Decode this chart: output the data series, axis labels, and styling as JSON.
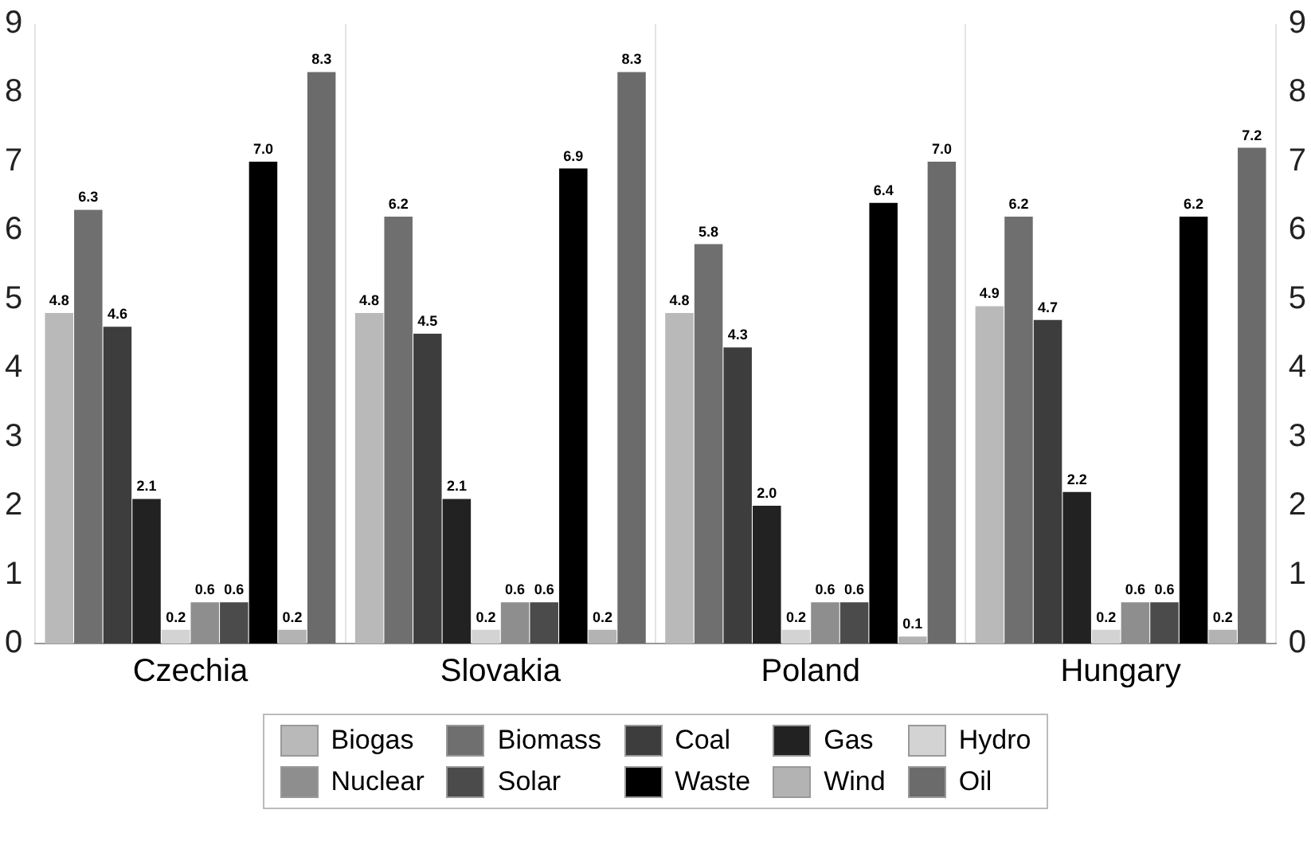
{
  "chart_data": {
    "type": "bar",
    "categories": [
      "Czechia",
      "Slovakia",
      "Poland",
      "Hungary"
    ],
    "series": [
      {
        "name": "Biogas",
        "color": "#b9b9b9",
        "values": [
          4.8,
          4.8,
          4.8,
          4.9
        ],
        "value_labels": [
          "4.8",
          "4.8",
          "4.8",
          "4.9"
        ]
      },
      {
        "name": "Biomass",
        "color": "#6f6f6f",
        "values": [
          6.3,
          6.2,
          5.8,
          6.2
        ],
        "value_labels": [
          "6.3",
          "6.2",
          "5.8",
          "6.2"
        ]
      },
      {
        "name": "Coal",
        "color": "#3d3d3d",
        "values": [
          4.6,
          4.5,
          4.3,
          4.7
        ],
        "value_labels": [
          "4.6",
          "4.5",
          "4.3",
          "4.7"
        ]
      },
      {
        "name": "Gas",
        "color": "#222222",
        "values": [
          2.1,
          2.1,
          2.0,
          2.2
        ],
        "value_labels": [
          "2.1",
          "2.1",
          "2.0",
          "2.2"
        ]
      },
      {
        "name": "Hydro",
        "color": "#d3d3d3",
        "values": [
          0.2,
          0.2,
          0.2,
          0.2
        ],
        "value_labels": [
          "0.2",
          "0.2",
          "0.2",
          "0.2"
        ]
      },
      {
        "name": "Nuclear",
        "color": "#8e8e8e",
        "values": [
          0.6,
          0.6,
          0.6,
          0.6
        ],
        "value_labels": [
          "0.6",
          "0.6",
          "0.6",
          "0.6"
        ]
      },
      {
        "name": "Solar",
        "color": "#4b4b4b",
        "values": [
          0.6,
          0.6,
          0.6,
          0.6
        ],
        "value_labels": [
          "0.6",
          "0.6",
          "0.6",
          "0.6"
        ]
      },
      {
        "name": "Waste",
        "color": "#000000",
        "values": [
          7.0,
          6.9,
          6.4,
          6.2
        ],
        "value_labels": [
          "7.0",
          "6.9",
          "6.4",
          "6.2"
        ]
      },
      {
        "name": "Wind",
        "color": "#b3b3b3",
        "values": [
          0.2,
          0.2,
          0.1,
          0.2
        ],
        "value_labels": [
          "0.2",
          "0.2",
          "0.1",
          "0.2"
        ]
      },
      {
        "name": "Oil",
        "color": "#6b6b6b",
        "values": [
          8.3,
          8.3,
          7.0,
          7.2
        ],
        "value_labels": [
          "8.3",
          "8.3",
          "7.0",
          "7.2"
        ]
      }
    ],
    "ylim": [
      0,
      9
    ],
    "yticks": [
      0,
      1,
      2,
      3,
      4,
      5,
      6,
      7,
      8,
      9
    ],
    "y2lim": [
      0,
      9
    ],
    "y2ticks": [
      0,
      1,
      2,
      3,
      4,
      5,
      6,
      7,
      8,
      9
    ],
    "grid": "x",
    "legend": "bottom"
  }
}
